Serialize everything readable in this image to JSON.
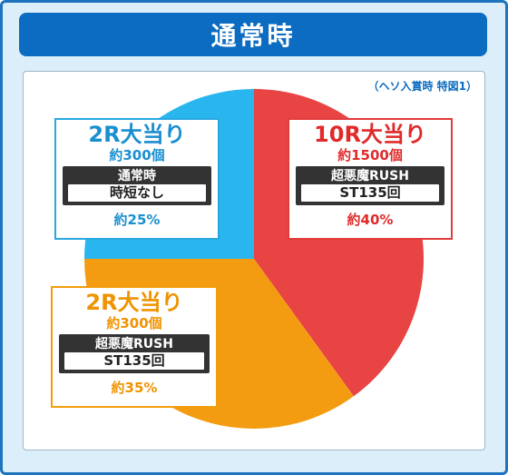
{
  "title": "通常時",
  "caption": "（ヘソ入賞時 特図1）",
  "colors": {
    "blue": "#29b6ef",
    "red": "#e84444",
    "orange": "#f39c12"
  },
  "chart_data": {
    "type": "pie",
    "slices": [
      {
        "hit": "10R大当り",
        "balls": "約1500個",
        "mode": "超悪魔RUSH",
        "detail": "ST135回",
        "label": "約40%",
        "value": 40,
        "color": "#e84444"
      },
      {
        "hit": "2R大当り",
        "balls": "約300個",
        "mode": "超悪魔RUSH",
        "detail": "ST135回",
        "label": "約35%",
        "value": 35,
        "color": "#f39c12"
      },
      {
        "hit": "2R大当り",
        "balls": "約300個",
        "mode": "通常時",
        "detail": "時短なし",
        "label": "約25%",
        "value": 25,
        "color": "#29b6ef"
      }
    ]
  }
}
